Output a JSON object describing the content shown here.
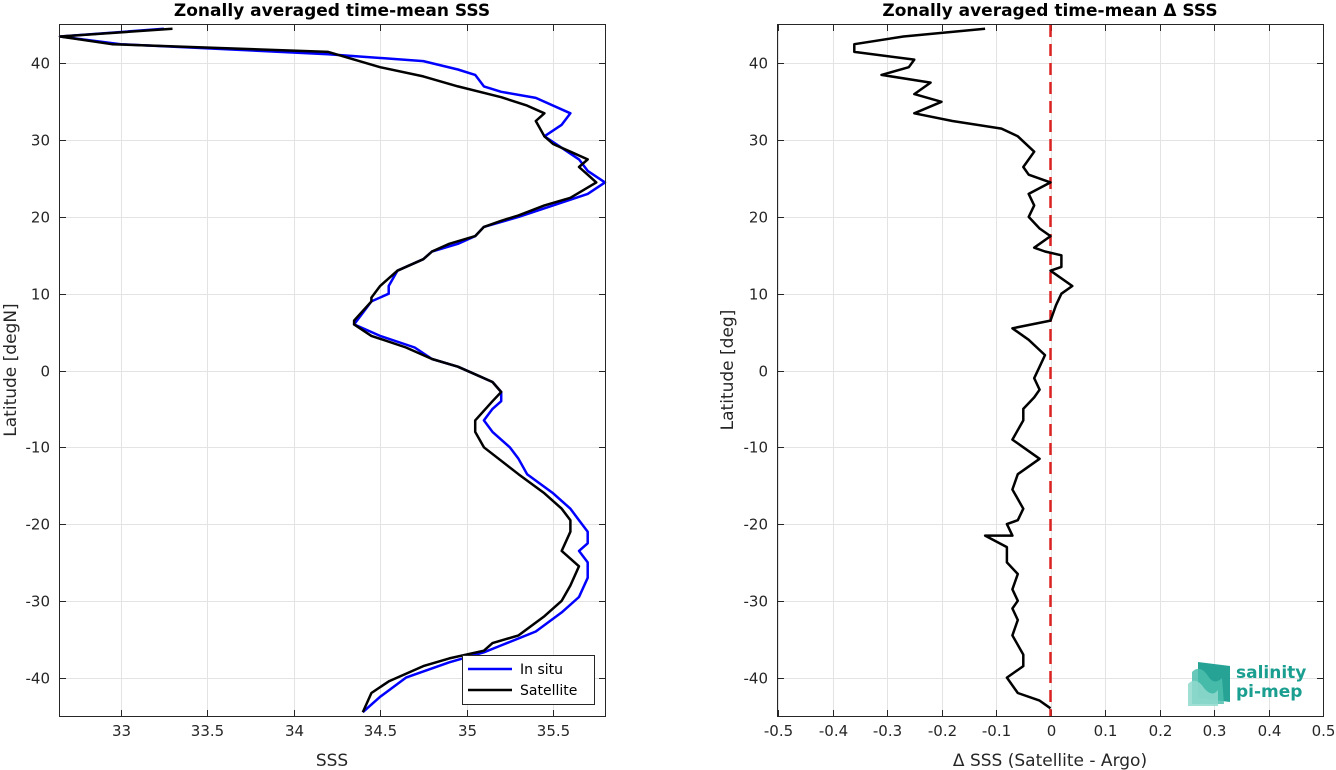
{
  "chart_data": [
    {
      "type": "line",
      "title": "Zonally averaged time-mean SSS",
      "xlabel": "SSS",
      "ylabel": "Latitude [degN]",
      "xlim": [
        32.65,
        35.8
      ],
      "ylim": [
        -45,
        45
      ],
      "xticks": [
        33,
        33.5,
        34,
        34.5,
        35,
        35.5
      ],
      "xtick_labels": [
        "33",
        "33.5",
        "34",
        "34.5",
        "35",
        "35.5"
      ],
      "yticks": [
        40,
        30,
        20,
        10,
        0,
        -10,
        -20,
        -30,
        -40
      ],
      "ytick_labels": [
        "40",
        "30",
        "20",
        "10",
        "0",
        "-10",
        "-20",
        "-30",
        "-40"
      ],
      "grid": true,
      "legend": "bottom-right",
      "series": [
        {
          "name": "In situ",
          "color": "#0000ff",
          "points": [
            [
              33.25,
              44.5
            ],
            [
              32.65,
              43.5
            ],
            [
              33.0,
              42.5
            ],
            [
              34.2,
              41.2
            ],
            [
              34.75,
              40.3
            ],
            [
              34.95,
              39.2
            ],
            [
              35.05,
              38.5
            ],
            [
              35.1,
              37.0
            ],
            [
              35.2,
              36.3
            ],
            [
              35.4,
              35.5
            ],
            [
              35.6,
              33.5
            ],
            [
              35.55,
              32.0
            ],
            [
              35.45,
              30.5
            ],
            [
              35.55,
              29.0
            ],
            [
              35.65,
              27.5
            ],
            [
              35.7,
              26.0
            ],
            [
              35.8,
              24.5
            ],
            [
              35.7,
              23.0
            ],
            [
              35.5,
              21.5
            ],
            [
              35.3,
              20.0
            ],
            [
              35.1,
              18.7
            ],
            [
              35.05,
              17.5
            ],
            [
              34.95,
              16.5
            ],
            [
              34.8,
              15.5
            ],
            [
              34.75,
              14.5
            ],
            [
              34.6,
              13.0
            ],
            [
              34.55,
              11.0
            ],
            [
              34.55,
              10.0
            ],
            [
              34.45,
              9.0
            ],
            [
              34.4,
              7.5
            ],
            [
              34.35,
              6.0
            ],
            [
              34.5,
              4.5
            ],
            [
              34.7,
              3.0
            ],
            [
              34.8,
              1.5
            ],
            [
              34.95,
              0.5
            ],
            [
              35.05,
              -0.5
            ],
            [
              35.15,
              -1.5
            ],
            [
              35.2,
              -2.8
            ],
            [
              35.2,
              -4.0
            ],
            [
              35.15,
              -5.0
            ],
            [
              35.1,
              -6.5
            ],
            [
              35.15,
              -8.0
            ],
            [
              35.25,
              -10.0
            ],
            [
              35.3,
              -11.5
            ],
            [
              35.35,
              -13.5
            ],
            [
              35.5,
              -16.0
            ],
            [
              35.6,
              -18.0
            ],
            [
              35.65,
              -19.5
            ],
            [
              35.7,
              -21.0
            ],
            [
              35.7,
              -21.5
            ],
            [
              35.7,
              -22.5
            ],
            [
              35.65,
              -23.5
            ],
            [
              35.7,
              -25.0
            ],
            [
              35.7,
              -27.0
            ],
            [
              35.65,
              -29.5
            ],
            [
              35.55,
              -31.5
            ],
            [
              35.4,
              -34.0
            ],
            [
              35.2,
              -35.8
            ],
            [
              35.1,
              -36.7
            ],
            [
              34.9,
              -38.0
            ],
            [
              34.65,
              -40.0
            ],
            [
              34.5,
              -42.5
            ],
            [
              34.4,
              -44.5
            ]
          ]
        },
        {
          "name": "Satellite",
          "color": "#000000",
          "points": [
            [
              33.3,
              44.5
            ],
            [
              32.65,
              43.5
            ],
            [
              32.95,
              42.5
            ],
            [
              34.2,
              41.5
            ],
            [
              34.35,
              40.5
            ],
            [
              34.5,
              39.5
            ],
            [
              34.75,
              38.3
            ],
            [
              34.95,
              37.0
            ],
            [
              35.2,
              35.6
            ],
            [
              35.35,
              34.5
            ],
            [
              35.45,
              33.5
            ],
            [
              35.4,
              32.5
            ],
            [
              35.45,
              30.5
            ],
            [
              35.5,
              29.5
            ],
            [
              35.6,
              28.5
            ],
            [
              35.7,
              27.5
            ],
            [
              35.65,
              26.5
            ],
            [
              35.7,
              25.5
            ],
            [
              35.75,
              24.5
            ],
            [
              35.6,
              22.5
            ],
            [
              35.45,
              21.5
            ],
            [
              35.3,
              20.2
            ],
            [
              35.2,
              19.5
            ],
            [
              35.1,
              18.7
            ],
            [
              35.05,
              17.5
            ],
            [
              34.9,
              16.5
            ],
            [
              34.8,
              15.5
            ],
            [
              34.75,
              14.5
            ],
            [
              34.6,
              13.0
            ],
            [
              34.5,
              11.0
            ],
            [
              34.45,
              9.5
            ],
            [
              34.45,
              9.0
            ],
            [
              34.35,
              6.5
            ],
            [
              34.35,
              6.0
            ],
            [
              34.45,
              4.5
            ],
            [
              34.65,
              3.0
            ],
            [
              34.8,
              1.5
            ],
            [
              34.95,
              0.5
            ],
            [
              35.05,
              -0.5
            ],
            [
              35.15,
              -1.5
            ],
            [
              35.2,
              -2.8
            ],
            [
              35.15,
              -4.0
            ],
            [
              35.05,
              -6.5
            ],
            [
              35.05,
              -8.0
            ],
            [
              35.1,
              -10.0
            ],
            [
              35.3,
              -13.5
            ],
            [
              35.45,
              -16.0
            ],
            [
              35.55,
              -18.0
            ],
            [
              35.6,
              -19.5
            ],
            [
              35.6,
              -21.0
            ],
            [
              35.55,
              -23.5
            ],
            [
              35.65,
              -25.5
            ],
            [
              35.6,
              -28.0
            ],
            [
              35.55,
              -30.0
            ],
            [
              35.45,
              -32.0
            ],
            [
              35.3,
              -34.5
            ],
            [
              35.15,
              -35.5
            ],
            [
              35.1,
              -36.5
            ],
            [
              34.9,
              -37.5
            ],
            [
              34.75,
              -38.5
            ],
            [
              34.55,
              -40.5
            ],
            [
              34.45,
              -42.0
            ],
            [
              34.4,
              -44.5
            ]
          ]
        }
      ]
    },
    {
      "type": "line",
      "title": "Zonally averaged time-mean Δ SSS",
      "xlabel": "Δ SSS (Satellite - Argo)",
      "ylabel": "Latitude [deg]",
      "xlim": [
        -0.5,
        0.5
      ],
      "ylim": [
        -45,
        45
      ],
      "xticks": [
        -0.5,
        -0.4,
        -0.3,
        -0.2,
        -0.1,
        0,
        0.1,
        0.2,
        0.3,
        0.4,
        0.5
      ],
      "xtick_labels": [
        "-0.5",
        "-0.4",
        "-0.3",
        "-0.2",
        "-0.1",
        "0",
        "0.1",
        "0.2",
        "0.3",
        "0.4",
        "0.5"
      ],
      "yticks": [
        40,
        30,
        20,
        10,
        0,
        -10,
        -20,
        -30,
        -40
      ],
      "ytick_labels": [
        "40",
        "30",
        "20",
        "10",
        "0",
        "-10",
        "-20",
        "-30",
        "-40"
      ],
      "grid": true,
      "reference_line": {
        "x": 0,
        "color": "#dd2222",
        "style": "dashed"
      },
      "series": [
        {
          "name": "",
          "color": "#000000",
          "points": [
            [
              -0.12,
              44.5
            ],
            [
              -0.27,
              43.5
            ],
            [
              -0.36,
              42.5
            ],
            [
              -0.36,
              41.5
            ],
            [
              -0.25,
              40.5
            ],
            [
              -0.26,
              39.5
            ],
            [
              -0.31,
              38.5
            ],
            [
              -0.22,
              37.5
            ],
            [
              -0.25,
              36.0
            ],
            [
              -0.2,
              35.0
            ],
            [
              -0.25,
              33.5
            ],
            [
              -0.18,
              32.5
            ],
            [
              -0.09,
              31.5
            ],
            [
              -0.06,
              30.5
            ],
            [
              -0.03,
              28.5
            ],
            [
              -0.05,
              26.5
            ],
            [
              -0.04,
              25.5
            ],
            [
              0.0,
              24.5
            ],
            [
              -0.04,
              23.0
            ],
            [
              -0.03,
              21.5
            ],
            [
              -0.04,
              20.0
            ],
            [
              -0.02,
              18.5
            ],
            [
              0.0,
              17.5
            ],
            [
              -0.03,
              16.0
            ],
            [
              -0.01,
              15.5
            ],
            [
              0.02,
              15.0
            ],
            [
              0.02,
              13.5
            ],
            [
              0.0,
              13.0
            ],
            [
              0.04,
              11.0
            ],
            [
              0.02,
              10.0
            ],
            [
              0.01,
              8.5
            ],
            [
              0.0,
              6.5
            ],
            [
              -0.07,
              5.5
            ],
            [
              -0.04,
              4.0
            ],
            [
              -0.01,
              2.0
            ],
            [
              -0.02,
              0.5
            ],
            [
              -0.03,
              -1.0
            ],
            [
              -0.02,
              -2.5
            ],
            [
              -0.03,
              -3.5
            ],
            [
              -0.05,
              -5.0
            ],
            [
              -0.05,
              -6.5
            ],
            [
              -0.07,
              -9.0
            ],
            [
              -0.05,
              -10.0
            ],
            [
              -0.02,
              -11.5
            ],
            [
              -0.06,
              -13.5
            ],
            [
              -0.07,
              -15.5
            ],
            [
              -0.05,
              -18.0
            ],
            [
              -0.06,
              -19.5
            ],
            [
              -0.08,
              -20.0
            ],
            [
              -0.07,
              -21.5
            ],
            [
              -0.12,
              -21.5
            ],
            [
              -0.08,
              -23.0
            ],
            [
              -0.08,
              -25.0
            ],
            [
              -0.06,
              -26.5
            ],
            [
              -0.07,
              -28.5
            ],
            [
              -0.06,
              -30.0
            ],
            [
              -0.07,
              -31.0
            ],
            [
              -0.06,
              -32.5
            ],
            [
              -0.07,
              -34.5
            ],
            [
              -0.05,
              -37.0
            ],
            [
              -0.05,
              -38.5
            ],
            [
              -0.08,
              -40.0
            ],
            [
              -0.06,
              -42.0
            ],
            [
              -0.02,
              -43.0
            ],
            [
              0.0,
              -44.0
            ]
          ]
        }
      ]
    }
  ],
  "legend": {
    "items": [
      "In situ",
      "Satellite"
    ]
  },
  "logo": {
    "line1": "salinity",
    "line2": "pi-mep",
    "color": "#1a9e8f"
  }
}
